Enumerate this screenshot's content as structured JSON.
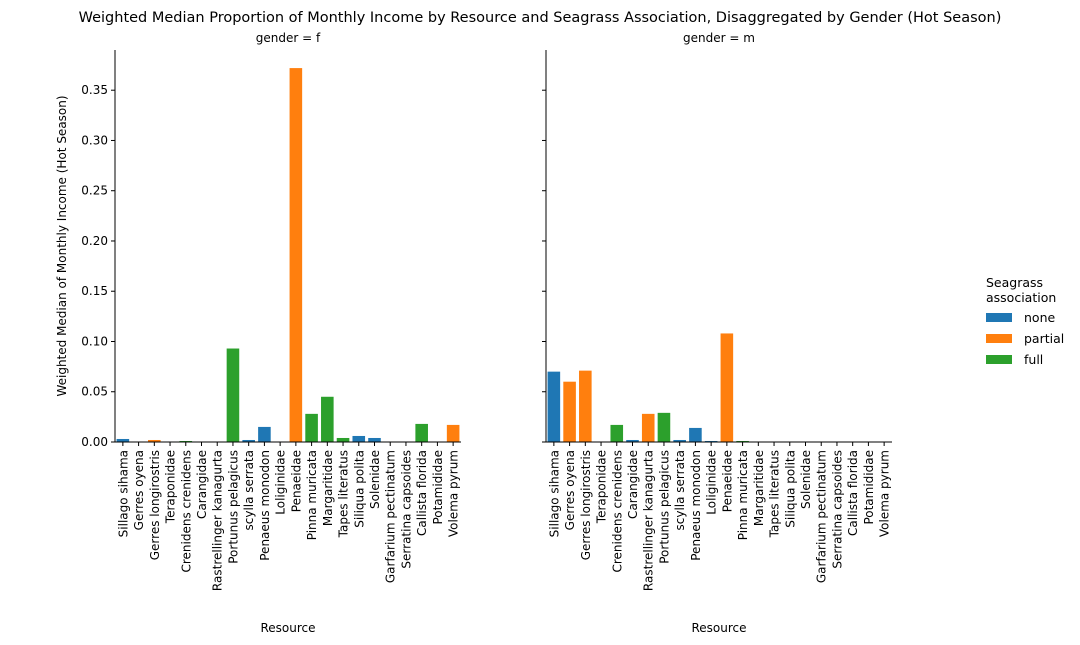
{
  "title": "Weighted Median Proportion of Monthly Income by Resource and Seagrass Association, Disaggregated by Gender (Hot Season)",
  "legend": {
    "title_line1": "Seagrass",
    "title_line2": "association",
    "placement": "right",
    "items": [
      {
        "label": "none",
        "color": "#1f77b4"
      },
      {
        "label": "partial",
        "color": "#ff7f0e"
      },
      {
        "label": "full",
        "color": "#2ca02c"
      }
    ]
  },
  "chart_data": {
    "type": "bar",
    "ylabel": "Weighted Median of Monthly Income (Hot Season)",
    "xlabel": "Resource",
    "ylim": [
      0,
      0.39
    ],
    "yticks": [
      "0.00",
      "0.05",
      "0.10",
      "0.15",
      "0.20",
      "0.25",
      "0.30",
      "0.35"
    ],
    "grid": false,
    "shared_y": true,
    "panels": [
      {
        "title": "gender = f",
        "categories": [
          "Sillago sihama",
          "Gerres oyena",
          "Gerres longirostris",
          "Teraponidae",
          "Crenidens crenidens",
          "Carangidae",
          "Rastrellinger kanagurta",
          "Portunus pelagicus",
          "scylla serrata",
          "Penaeus monodon",
          "Loliginidae",
          "Penaeidae",
          "Pinna muricata",
          "Margaritidae",
          "Tapes literatus",
          "Siliqua polita",
          "Solenidae",
          "Garfarium pectinatum",
          "Serratina capsoides",
          "Callista florida",
          "Potamididae",
          "Volema pyrum"
        ],
        "values": [
          0.003,
          0.0,
          0.002,
          0.0,
          0.001,
          0.0,
          0.0,
          0.093,
          0.002,
          0.015,
          0.0,
          0.372,
          0.028,
          0.045,
          0.004,
          0.006,
          0.004,
          0.0,
          0.0,
          0.018,
          0.0,
          0.017
        ],
        "associations": [
          "none",
          "none",
          "partial",
          "none",
          "full",
          "none",
          "partial",
          "full",
          "none",
          "none",
          "none",
          "partial",
          "full",
          "full",
          "full",
          "none",
          "none",
          "none",
          "none",
          "full",
          "none",
          "partial"
        ]
      },
      {
        "title": "gender = m",
        "categories": [
          "Sillago sihama",
          "Gerres oyena",
          "Gerres longirostris",
          "Teraponidae",
          "Crenidens crenidens",
          "Carangidae",
          "Rastrellinger kanagurta",
          "Portunus pelagicus",
          "scylla serrata",
          "Penaeus monodon",
          "Loliginidae",
          "Penaeidae",
          "Pinna muricata",
          "Margaritidae",
          "Tapes literatus",
          "Siliqua polita",
          "Solenidae",
          "Garfarium pectinatum",
          "Serratina capsoides",
          "Callista florida",
          "Potamididae",
          "Volema pyrum"
        ],
        "values": [
          0.07,
          0.06,
          0.071,
          0.0,
          0.017,
          0.002,
          0.028,
          0.029,
          0.002,
          0.014,
          0.001,
          0.108,
          0.001,
          0.0,
          0.0,
          0.0,
          0.0,
          0.0,
          0.0,
          0.0,
          0.0,
          0.0
        ],
        "associations": [
          "none",
          "partial",
          "partial",
          "none",
          "full",
          "none",
          "partial",
          "full",
          "none",
          "none",
          "none",
          "partial",
          "full",
          "none",
          "none",
          "none",
          "none",
          "none",
          "none",
          "none",
          "none",
          "none"
        ]
      }
    ]
  }
}
